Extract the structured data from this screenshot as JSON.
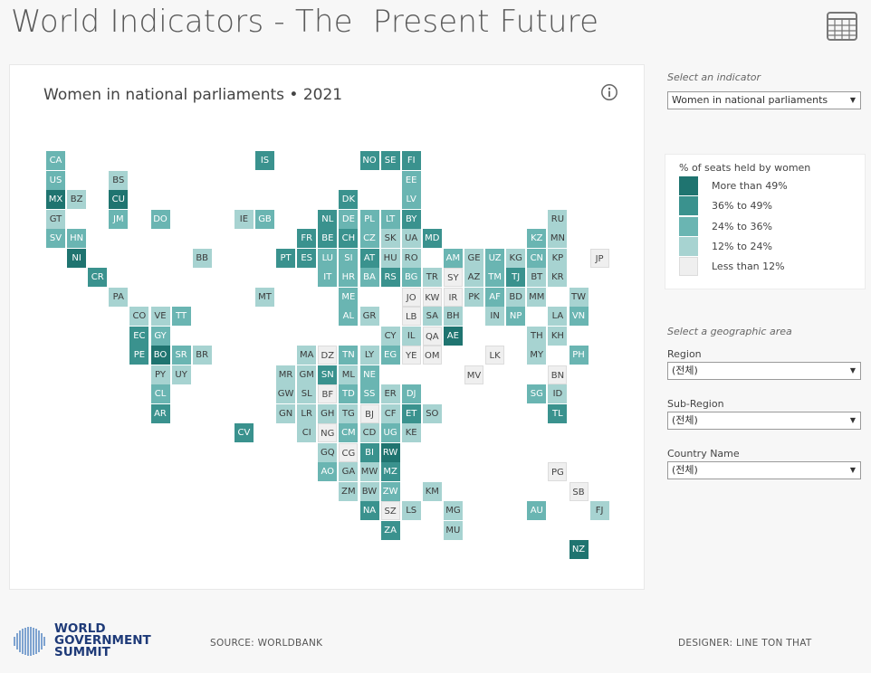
{
  "header": {
    "title": "World Indicators - The  Present Future",
    "table_icon": "table-grid-icon"
  },
  "chart_panel": {
    "title": "Women in national parliaments • 2021",
    "info_icon": "info-icon"
  },
  "indicator_selector": {
    "label": "Select an indicator",
    "value": "Women in national parliaments"
  },
  "legend": {
    "title": "% of seats held by women",
    "items": [
      {
        "label": "More than 49%",
        "color": "#1f7470"
      },
      {
        "label": "36% to 49%",
        "color": "#3a928e"
      },
      {
        "label": "24% to 36%",
        "color": "#6ab5b2"
      },
      {
        "label": "12% to 24%",
        "color": "#a7d3d1"
      },
      {
        "label": "Less than 12%",
        "color": "#efefef"
      }
    ]
  },
  "geo_selector": {
    "label": "Select a geographic area",
    "region": {
      "label": "Region",
      "value": "(전체)"
    },
    "sub_region": {
      "label": "Sub-Region",
      "value": "(전체)"
    },
    "country": {
      "label": "Country Name",
      "value": "(전체)"
    }
  },
  "footer": {
    "logo_line1": "WORLD",
    "logo_line2": "GOVERNMENT",
    "logo_line3": "SUMMIT",
    "source": "SOURCE:  WORLDBANK",
    "designer": "DESIGNER: LINE TON THAT"
  },
  "chart_data": {
    "type": "heatmap",
    "layout": "tile grid map",
    "title": "Women in national parliaments • 2021",
    "legend_title": "% of seats held by women",
    "category_labels": [
      "More than 49%",
      "36% to 49%",
      "24% to 36%",
      "12% to 24%",
      "Less than 12%"
    ],
    "colors": [
      "#1f7470",
      "#3a928e",
      "#6ab5b2",
      "#a7d3d1",
      "#efefef"
    ],
    "tiles": [
      {
        "code": "CA",
        "col": 0,
        "row": 0,
        "cat": 2
      },
      {
        "code": "IS",
        "col": 10,
        "row": 0,
        "cat": 1
      },
      {
        "code": "NO",
        "col": 15,
        "row": 0,
        "cat": 1
      },
      {
        "code": "SE",
        "col": 16,
        "row": 0,
        "cat": 1
      },
      {
        "code": "FI",
        "col": 17,
        "row": 0,
        "cat": 1
      },
      {
        "code": "US",
        "col": 0,
        "row": 1,
        "cat": 2
      },
      {
        "code": "BS",
        "col": 3,
        "row": 1,
        "cat": 3
      },
      {
        "code": "EE",
        "col": 17,
        "row": 1,
        "cat": 2
      },
      {
        "code": "MX",
        "col": 0,
        "row": 2,
        "cat": 0
      },
      {
        "code": "BZ",
        "col": 1,
        "row": 2,
        "cat": 3
      },
      {
        "code": "CU",
        "col": 3,
        "row": 2,
        "cat": 0
      },
      {
        "code": "DK",
        "col": 14,
        "row": 2,
        "cat": 1
      },
      {
        "code": "LV",
        "col": 17,
        "row": 2,
        "cat": 2
      },
      {
        "code": "GT",
        "col": 0,
        "row": 3,
        "cat": 3
      },
      {
        "code": "JM",
        "col": 3,
        "row": 3,
        "cat": 2
      },
      {
        "code": "DO",
        "col": 5,
        "row": 3,
        "cat": 2
      },
      {
        "code": "IE",
        "col": 9,
        "row": 3,
        "cat": 3
      },
      {
        "code": "GB",
        "col": 10,
        "row": 3,
        "cat": 2
      },
      {
        "code": "NL",
        "col": 13,
        "row": 3,
        "cat": 1
      },
      {
        "code": "DE",
        "col": 14,
        "row": 3,
        "cat": 2
      },
      {
        "code": "PL",
        "col": 15,
        "row": 3,
        "cat": 2
      },
      {
        "code": "LT",
        "col": 16,
        "row": 3,
        "cat": 2
      },
      {
        "code": "BY",
        "col": 17,
        "row": 3,
        "cat": 1
      },
      {
        "code": "RU",
        "col": 24,
        "row": 3,
        "cat": 3
      },
      {
        "code": "SV",
        "col": 0,
        "row": 4,
        "cat": 2
      },
      {
        "code": "HN",
        "col": 1,
        "row": 4,
        "cat": 2
      },
      {
        "code": "FR",
        "col": 12,
        "row": 4,
        "cat": 1
      },
      {
        "code": "BE",
        "col": 13,
        "row": 4,
        "cat": 1
      },
      {
        "code": "CH",
        "col": 14,
        "row": 4,
        "cat": 1
      },
      {
        "code": "CZ",
        "col": 15,
        "row": 4,
        "cat": 2
      },
      {
        "code": "SK",
        "col": 16,
        "row": 4,
        "cat": 3
      },
      {
        "code": "UA",
        "col": 17,
        "row": 4,
        "cat": 3
      },
      {
        "code": "MD",
        "col": 18,
        "row": 4,
        "cat": 1
      },
      {
        "code": "KZ",
        "col": 23,
        "row": 4,
        "cat": 2
      },
      {
        "code": "MN",
        "col": 24,
        "row": 4,
        "cat": 3
      },
      {
        "code": "NI",
        "col": 1,
        "row": 5,
        "cat": 0
      },
      {
        "code": "BB",
        "col": 7,
        "row": 5,
        "cat": 3
      },
      {
        "code": "PT",
        "col": 11,
        "row": 5,
        "cat": 1
      },
      {
        "code": "ES",
        "col": 12,
        "row": 5,
        "cat": 1
      },
      {
        "code": "LU",
        "col": 13,
        "row": 5,
        "cat": 2
      },
      {
        "code": "SI",
        "col": 14,
        "row": 5,
        "cat": 2
      },
      {
        "code": "AT",
        "col": 15,
        "row": 5,
        "cat": 1
      },
      {
        "code": "HU",
        "col": 16,
        "row": 5,
        "cat": 3
      },
      {
        "code": "RO",
        "col": 17,
        "row": 5,
        "cat": 3
      },
      {
        "code": "AM",
        "col": 19,
        "row": 5,
        "cat": 2
      },
      {
        "code": "GE",
        "col": 20,
        "row": 5,
        "cat": 3
      },
      {
        "code": "UZ",
        "col": 21,
        "row": 5,
        "cat": 2
      },
      {
        "code": "KG",
        "col": 22,
        "row": 5,
        "cat": 3
      },
      {
        "code": "CN",
        "col": 23,
        "row": 5,
        "cat": 2
      },
      {
        "code": "KP",
        "col": 24,
        "row": 5,
        "cat": 3
      },
      {
        "code": "JP",
        "col": 26,
        "row": 5,
        "cat": 4
      },
      {
        "code": "CR",
        "col": 2,
        "row": 6,
        "cat": 1
      },
      {
        "code": "IT",
        "col": 13,
        "row": 6,
        "cat": 2
      },
      {
        "code": "HR",
        "col": 14,
        "row": 6,
        "cat": 2
      },
      {
        "code": "BA",
        "col": 15,
        "row": 6,
        "cat": 2
      },
      {
        "code": "RS",
        "col": 16,
        "row": 6,
        "cat": 1
      },
      {
        "code": "BG",
        "col": 17,
        "row": 6,
        "cat": 2
      },
      {
        "code": "TR",
        "col": 18,
        "row": 6,
        "cat": 3
      },
      {
        "code": "SY",
        "col": 19,
        "row": 6,
        "cat": 4
      },
      {
        "code": "AZ",
        "col": 20,
        "row": 6,
        "cat": 3
      },
      {
        "code": "TM",
        "col": 21,
        "row": 6,
        "cat": 2
      },
      {
        "code": "TJ",
        "col": 22,
        "row": 6,
        "cat": 1
      },
      {
        "code": "BT",
        "col": 23,
        "row": 6,
        "cat": 3
      },
      {
        "code": "KR",
        "col": 24,
        "row": 6,
        "cat": 3
      },
      {
        "code": "PA",
        "col": 3,
        "row": 7,
        "cat": 3
      },
      {
        "code": "MT",
        "col": 10,
        "row": 7,
        "cat": 3
      },
      {
        "code": "ME",
        "col": 14,
        "row": 7,
        "cat": 2
      },
      {
        "code": "JO",
        "col": 17,
        "row": 7,
        "cat": 4
      },
      {
        "code": "KW",
        "col": 18,
        "row": 7,
        "cat": 4
      },
      {
        "code": "IR",
        "col": 19,
        "row": 7,
        "cat": 4
      },
      {
        "code": "PK",
        "col": 20,
        "row": 7,
        "cat": 3
      },
      {
        "code": "AF",
        "col": 21,
        "row": 7,
        "cat": 2
      },
      {
        "code": "BD",
        "col": 22,
        "row": 7,
        "cat": 3
      },
      {
        "code": "MM",
        "col": 23,
        "row": 7,
        "cat": 3
      },
      {
        "code": "TW",
        "col": 25,
        "row": 7,
        "cat": 3
      },
      {
        "code": "CO",
        "col": 4,
        "row": 8,
        "cat": 3
      },
      {
        "code": "VE",
        "col": 5,
        "row": 8,
        "cat": 3
      },
      {
        "code": "TT",
        "col": 6,
        "row": 8,
        "cat": 2
      },
      {
        "code": "AL",
        "col": 14,
        "row": 8,
        "cat": 2
      },
      {
        "code": "GR",
        "col": 15,
        "row": 8,
        "cat": 3
      },
      {
        "code": "LB",
        "col": 17,
        "row": 8,
        "cat": 4
      },
      {
        "code": "SA",
        "col": 18,
        "row": 8,
        "cat": 3
      },
      {
        "code": "BH",
        "col": 19,
        "row": 8,
        "cat": 3
      },
      {
        "code": "IN",
        "col": 21,
        "row": 8,
        "cat": 3
      },
      {
        "code": "NP",
        "col": 22,
        "row": 8,
        "cat": 2
      },
      {
        "code": "LA",
        "col": 24,
        "row": 8,
        "cat": 3
      },
      {
        "code": "VN",
        "col": 25,
        "row": 8,
        "cat": 2
      },
      {
        "code": "EC",
        "col": 4,
        "row": 9,
        "cat": 1
      },
      {
        "code": "GY",
        "col": 5,
        "row": 9,
        "cat": 2
      },
      {
        "code": "CY",
        "col": 16,
        "row": 9,
        "cat": 3
      },
      {
        "code": "IL",
        "col": 17,
        "row": 9,
        "cat": 3
      },
      {
        "code": "QA",
        "col": 18,
        "row": 9,
        "cat": 4
      },
      {
        "code": "AE",
        "col": 19,
        "row": 9,
        "cat": 0
      },
      {
        "code": "TH",
        "col": 23,
        "row": 9,
        "cat": 3
      },
      {
        "code": "KH",
        "col": 24,
        "row": 9,
        "cat": 3
      },
      {
        "code": "PE",
        "col": 4,
        "row": 10,
        "cat": 1
      },
      {
        "code": "BO",
        "col": 5,
        "row": 10,
        "cat": 0
      },
      {
        "code": "SR",
        "col": 6,
        "row": 10,
        "cat": 2
      },
      {
        "code": "BR",
        "col": 7,
        "row": 10,
        "cat": 3
      },
      {
        "code": "MA",
        "col": 12,
        "row": 10,
        "cat": 3
      },
      {
        "code": "DZ",
        "col": 13,
        "row": 10,
        "cat": 4
      },
      {
        "code": "TN",
        "col": 14,
        "row": 10,
        "cat": 2
      },
      {
        "code": "LY",
        "col": 15,
        "row": 10,
        "cat": 3
      },
      {
        "code": "EG",
        "col": 16,
        "row": 10,
        "cat": 2
      },
      {
        "code": "YE",
        "col": 17,
        "row": 10,
        "cat": 4
      },
      {
        "code": "OM",
        "col": 18,
        "row": 10,
        "cat": 4
      },
      {
        "code": "LK",
        "col": 21,
        "row": 10,
        "cat": 4
      },
      {
        "code": "MY",
        "col": 23,
        "row": 10,
        "cat": 3
      },
      {
        "code": "PH",
        "col": 25,
        "row": 10,
        "cat": 2
      },
      {
        "code": "PY",
        "col": 5,
        "row": 11,
        "cat": 3
      },
      {
        "code": "UY",
        "col": 6,
        "row": 11,
        "cat": 3
      },
      {
        "code": "MR",
        "col": 11,
        "row": 11,
        "cat": 3
      },
      {
        "code": "GM",
        "col": 12,
        "row": 11,
        "cat": 3
      },
      {
        "code": "SN",
        "col": 13,
        "row": 11,
        "cat": 1
      },
      {
        "code": "ML",
        "col": 14,
        "row": 11,
        "cat": 3
      },
      {
        "code": "NE",
        "col": 15,
        "row": 11,
        "cat": 2
      },
      {
        "code": "MV",
        "col": 20,
        "row": 11,
        "cat": 4
      },
      {
        "code": "BN",
        "col": 24,
        "row": 11,
        "cat": 4
      },
      {
        "code": "CL",
        "col": 5,
        "row": 12,
        "cat": 2
      },
      {
        "code": "GW",
        "col": 11,
        "row": 12,
        "cat": 3
      },
      {
        "code": "SL",
        "col": 12,
        "row": 12,
        "cat": 3
      },
      {
        "code": "BF",
        "col": 13,
        "row": 12,
        "cat": 4
      },
      {
        "code": "TD",
        "col": 14,
        "row": 12,
        "cat": 2
      },
      {
        "code": "SS",
        "col": 15,
        "row": 12,
        "cat": 2
      },
      {
        "code": "ER",
        "col": 16,
        "row": 12,
        "cat": 3
      },
      {
        "code": "DJ",
        "col": 17,
        "row": 12,
        "cat": 2
      },
      {
        "code": "SG",
        "col": 23,
        "row": 12,
        "cat": 2
      },
      {
        "code": "ID",
        "col": 24,
        "row": 12,
        "cat": 3
      },
      {
        "code": "AR",
        "col": 5,
        "row": 13,
        "cat": 1
      },
      {
        "code": "GN",
        "col": 11,
        "row": 13,
        "cat": 3
      },
      {
        "code": "LR",
        "col": 12,
        "row": 13,
        "cat": 3
      },
      {
        "code": "GH",
        "col": 13,
        "row": 13,
        "cat": 3
      },
      {
        "code": "TG",
        "col": 14,
        "row": 13,
        "cat": 3
      },
      {
        "code": "BJ",
        "col": 15,
        "row": 13,
        "cat": 4
      },
      {
        "code": "CF",
        "col": 16,
        "row": 13,
        "cat": 3
      },
      {
        "code": "ET",
        "col": 17,
        "row": 13,
        "cat": 1
      },
      {
        "code": "SO",
        "col": 18,
        "row": 13,
        "cat": 3
      },
      {
        "code": "TL",
        "col": 24,
        "row": 13,
        "cat": 1
      },
      {
        "code": "CV",
        "col": 9,
        "row": 14,
        "cat": 1
      },
      {
        "code": "CI",
        "col": 12,
        "row": 14,
        "cat": 3
      },
      {
        "code": "NG",
        "col": 13,
        "row": 14,
        "cat": 4
      },
      {
        "code": "CM",
        "col": 14,
        "row": 14,
        "cat": 2
      },
      {
        "code": "CD",
        "col": 15,
        "row": 14,
        "cat": 3
      },
      {
        "code": "UG",
        "col": 16,
        "row": 14,
        "cat": 2
      },
      {
        "code": "KE",
        "col": 17,
        "row": 14,
        "cat": 3
      },
      {
        "code": "GQ",
        "col": 13,
        "row": 15,
        "cat": 3
      },
      {
        "code": "CG",
        "col": 14,
        "row": 15,
        "cat": 4
      },
      {
        "code": "BI",
        "col": 15,
        "row": 15,
        "cat": 1
      },
      {
        "code": "RW",
        "col": 16,
        "row": 15,
        "cat": 0
      },
      {
        "code": "AO",
        "col": 13,
        "row": 16,
        "cat": 2
      },
      {
        "code": "GA",
        "col": 14,
        "row": 16,
        "cat": 3
      },
      {
        "code": "MW",
        "col": 15,
        "row": 16,
        "cat": 3
      },
      {
        "code": "MZ",
        "col": 16,
        "row": 16,
        "cat": 1
      },
      {
        "code": "PG",
        "col": 24,
        "row": 16,
        "cat": 4
      },
      {
        "code": "ZM",
        "col": 14,
        "row": 17,
        "cat": 3
      },
      {
        "code": "BW",
        "col": 15,
        "row": 17,
        "cat": 3
      },
      {
        "code": "ZW",
        "col": 16,
        "row": 17,
        "cat": 2
      },
      {
        "code": "KM",
        "col": 18,
        "row": 17,
        "cat": 3
      },
      {
        "code": "SB",
        "col": 25,
        "row": 17,
        "cat": 4
      },
      {
        "code": "NA",
        "col": 15,
        "row": 18,
        "cat": 1
      },
      {
        "code": "SZ",
        "col": 16,
        "row": 18,
        "cat": 4
      },
      {
        "code": "LS",
        "col": 17,
        "row": 18,
        "cat": 3
      },
      {
        "code": "MG",
        "col": 19,
        "row": 18,
        "cat": 3
      },
      {
        "code": "AU",
        "col": 23,
        "row": 18,
        "cat": 2
      },
      {
        "code": "FJ",
        "col": 26,
        "row": 18,
        "cat": 3
      },
      {
        "code": "ZA",
        "col": 16,
        "row": 19,
        "cat": 1
      },
      {
        "code": "MU",
        "col": 19,
        "row": 19,
        "cat": 3
      },
      {
        "code": "NZ",
        "col": 25,
        "row": 20,
        "cat": 0
      }
    ]
  }
}
